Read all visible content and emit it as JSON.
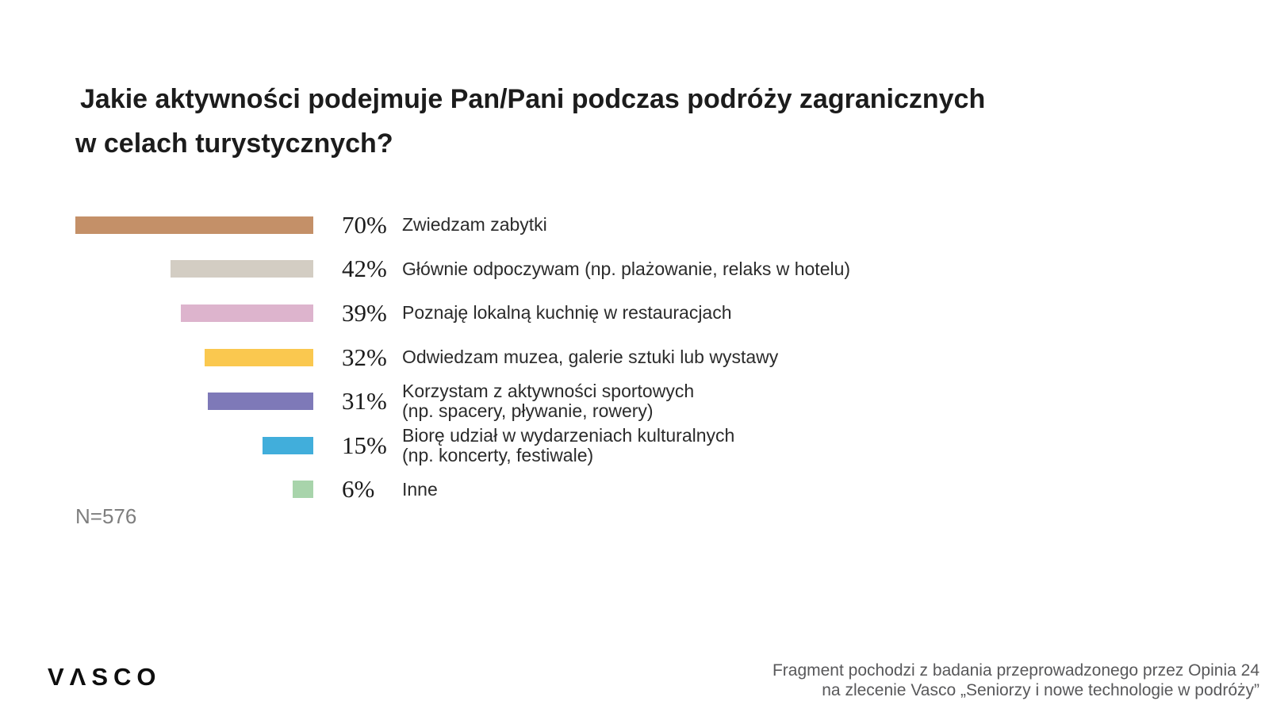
{
  "title": {
    "line1": "Jakie aktywności podejmuje Pan/Pani podczas podróży zagranicznych",
    "line2": "w celach turystycznych?"
  },
  "chart_data": {
    "type": "bar",
    "orientation": "horizontal",
    "title": "Jakie aktywności podejmuje Pan/Pani podczas podróży zagranicznych w celach turystycznych?",
    "unit": "%",
    "xlim": [
      0,
      70
    ],
    "grid": false,
    "legend": false,
    "categories": [
      "Zwiedzam zabytki",
      "Głównie odpoczywam (np. plażowanie, relaks w hotelu)",
      "Poznaję lokalną kuchnię w restauracjach",
      "Odwiedzam muzea, galerie sztuki lub wystawy",
      "Korzystam z aktywności sportowych (np. spacery, pływanie, rowery)",
      "Biorę udział w wydarzeniach kulturalnych (np. koncerty, festiwale)",
      "Inne"
    ],
    "values": [
      70,
      42,
      39,
      32,
      31,
      15,
      6
    ],
    "sample_size_label": "N=576",
    "rows": [
      {
        "value": 70,
        "percent_label": "70%",
        "color": "#C49068",
        "lines": [
          "Zwiedzam zabytki"
        ]
      },
      {
        "value": 42,
        "percent_label": "42%",
        "color": "#D3CDC3",
        "lines": [
          "Głównie odpoczywam (np. plażowanie, relaks w hotelu)"
        ]
      },
      {
        "value": 39,
        "percent_label": "39%",
        "color": "#DDB4CD",
        "lines": [
          "Poznaję lokalną kuchnię w restauracjach"
        ]
      },
      {
        "value": 32,
        "percent_label": "32%",
        "color": "#FAC84F",
        "lines": [
          "Odwiedzam muzea, galerie sztuki lub wystawy"
        ]
      },
      {
        "value": 31,
        "percent_label": "31%",
        "color": "#7E79B8",
        "lines": [
          "Korzystam z aktywności sportowych",
          "(np. spacery, pływanie, rowery)"
        ]
      },
      {
        "value": 15,
        "percent_label": "15%",
        "color": "#41AEDB",
        "lines": [
          "Biorę udział w wydarzeniach kulturalnych",
          "(np. koncerty, festiwale)"
        ]
      },
      {
        "value": 6,
        "percent_label": "6%",
        "color": "#A8D4AB",
        "lines": [
          "Inne"
        ]
      }
    ]
  },
  "footer": {
    "logo_text": "VΛSCO",
    "source_line1": "Fragment pochodzi z badania przeprowadzonego przez Opinia 24",
    "source_line2": "na zlecenie Vasco „Seniorzy i nowe technologie w podróży”"
  }
}
